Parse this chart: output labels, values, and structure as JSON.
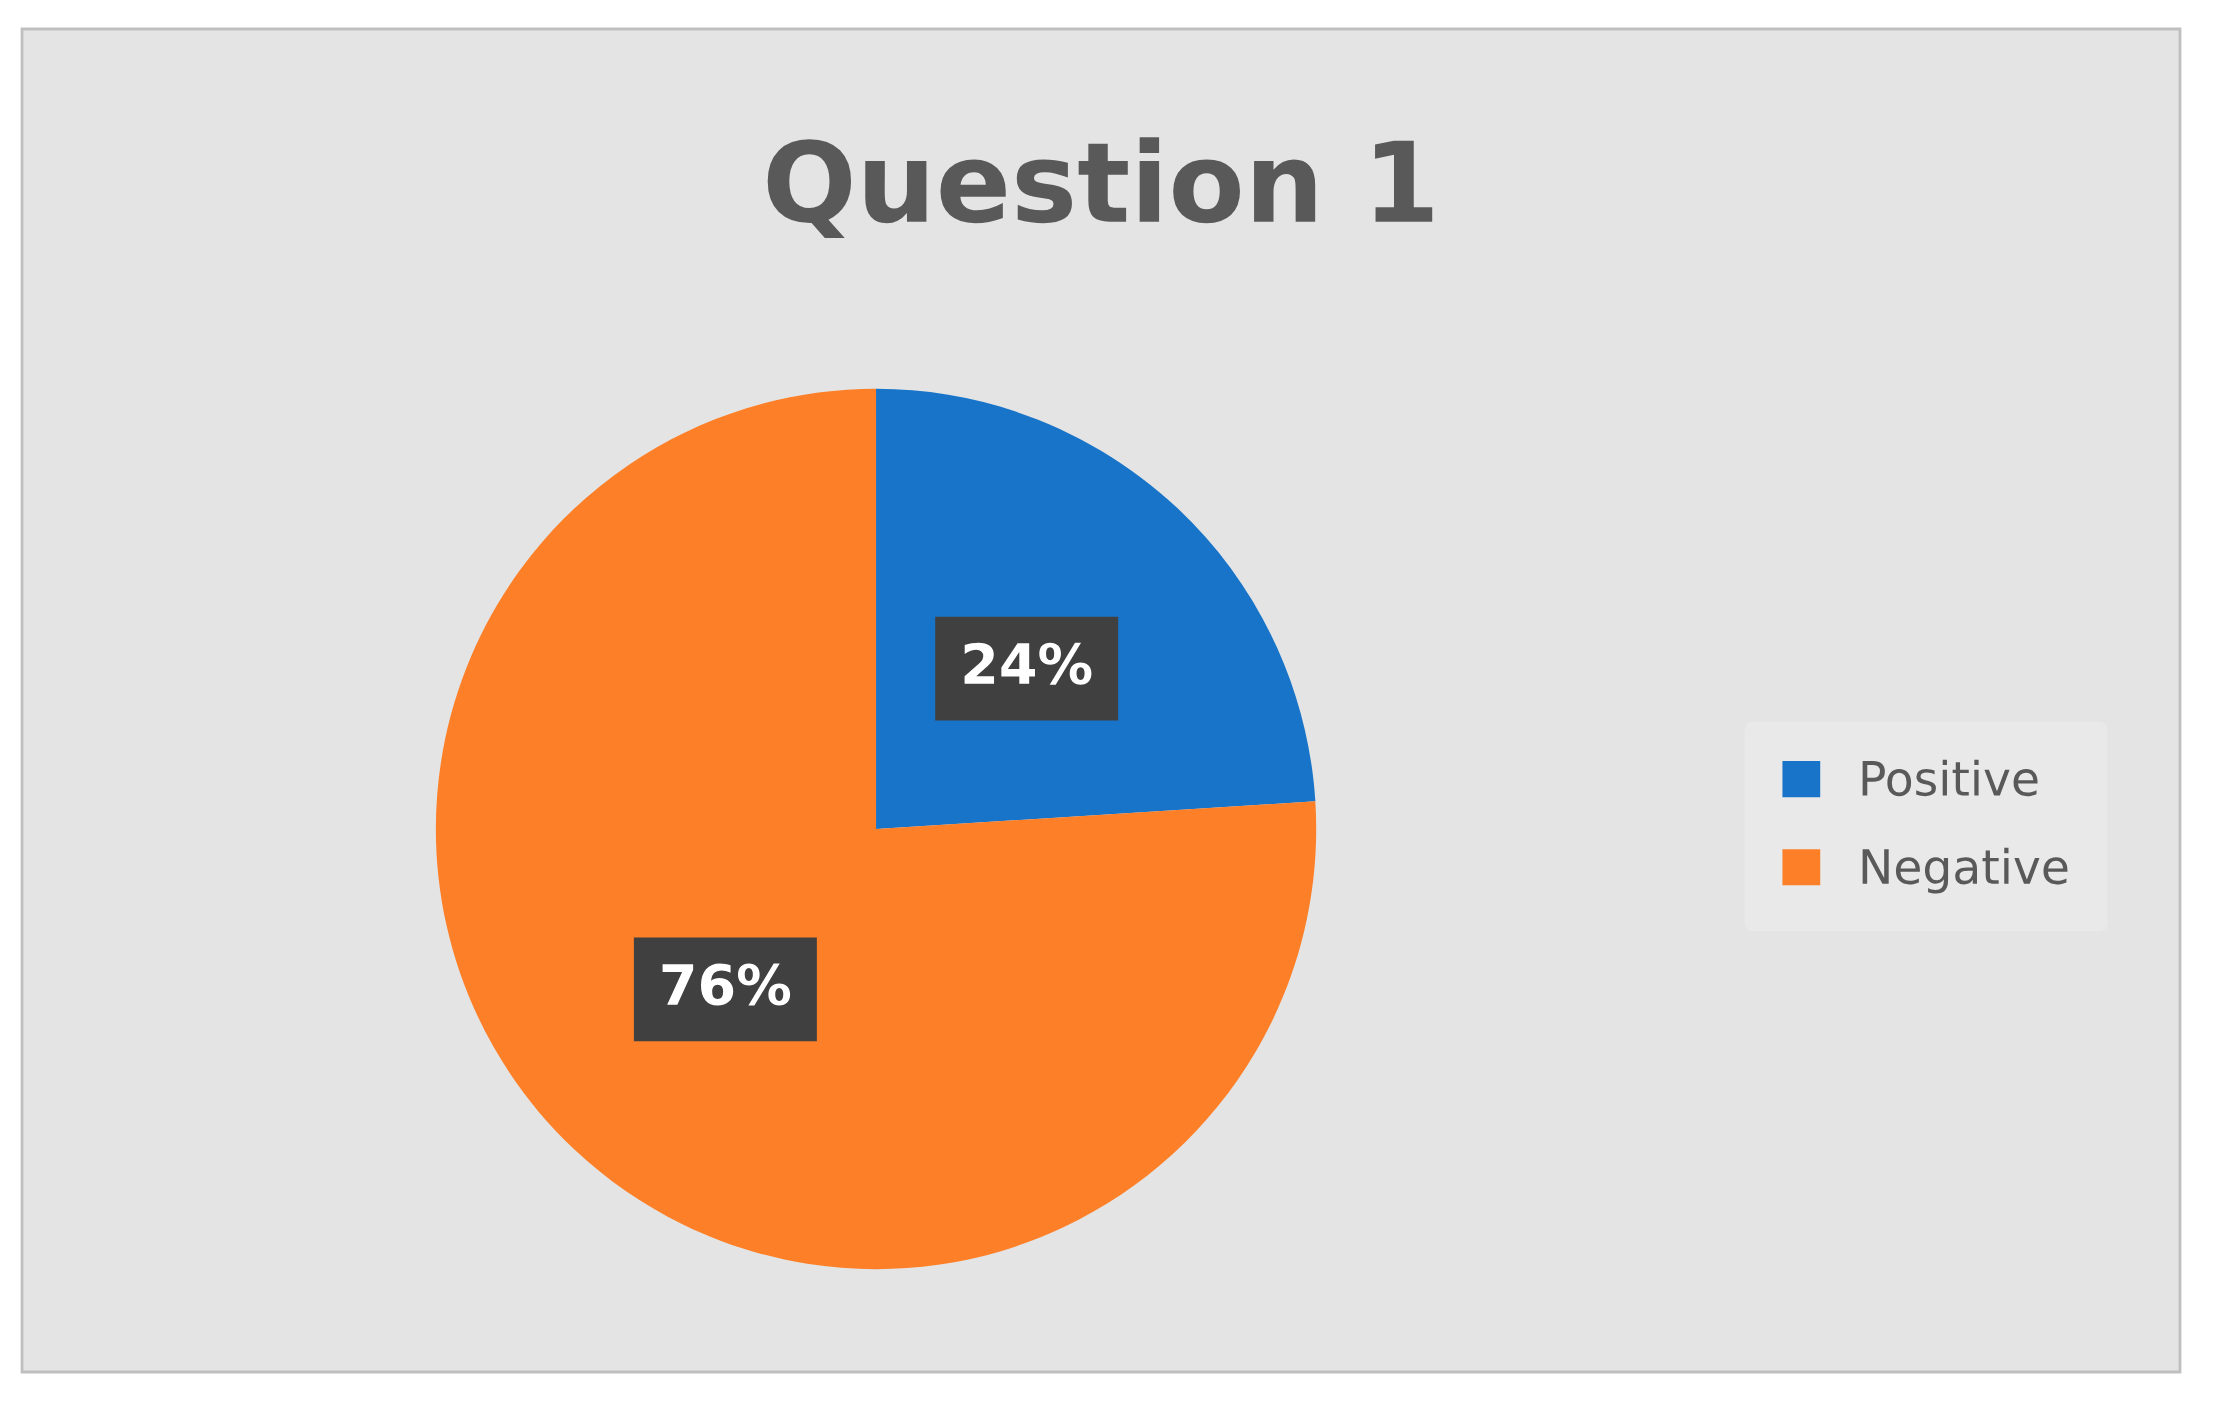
{
  "chart_data": {
    "type": "pie",
    "title": "Question 1",
    "categories": [
      "Positive",
      "Negative"
    ],
    "values": [
      24,
      76
    ],
    "colors": [
      "#1874c8",
      "#fd7f27"
    ],
    "value_labels": [
      "24%",
      "76%"
    ],
    "legend": "right"
  }
}
